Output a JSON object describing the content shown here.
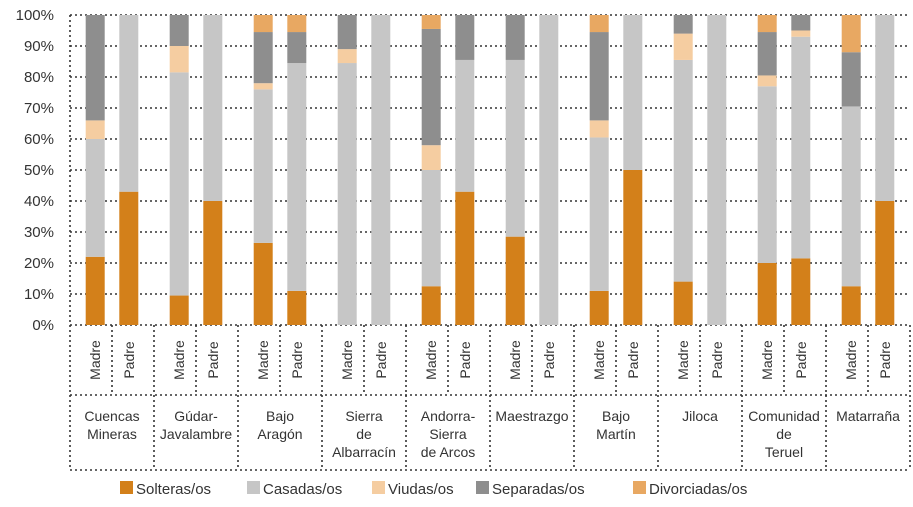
{
  "chart_data": {
    "type": "bar",
    "stacked": true,
    "y_axis": {
      "ticks": [
        "0%",
        "10%",
        "20%",
        "30%",
        "40%",
        "50%",
        "60%",
        "70%",
        "80%",
        "90%",
        "100%"
      ],
      "ylim": [
        0,
        100
      ],
      "unit": "%"
    },
    "grid": "dotted horizontal",
    "legend_placement": "bottom",
    "groups": [
      {
        "label": "Cuencas Mineras",
        "label_lines": [
          "Cuencas",
          "Mineras"
        ],
        "bars": [
          {
            "sub": "Madre",
            "values": [
              22,
              38,
              6,
              34,
              0
            ]
          },
          {
            "sub": "Padre",
            "values": [
              43,
              57,
              0,
              0,
              0
            ]
          }
        ]
      },
      {
        "label": "Gúdar-Javalambre",
        "label_lines": [
          "Gúdar-",
          "Javalambre"
        ],
        "bars": [
          {
            "sub": "Madre",
            "values": [
              9.5,
              72,
              8.5,
              10,
              0
            ]
          },
          {
            "sub": "Padre",
            "values": [
              40,
              60,
              0,
              0,
              0
            ]
          }
        ]
      },
      {
        "label": "Bajo Aragón",
        "label_lines": [
          "Bajo",
          "Aragón"
        ],
        "bars": [
          {
            "sub": "Madre",
            "values": [
              26.5,
              49.5,
              2,
              16.5,
              5.5
            ]
          },
          {
            "sub": "Padre",
            "values": [
              11,
              73.5,
              0,
              10,
              5.5
            ]
          }
        ]
      },
      {
        "label": "Sierra de Albarracín",
        "label_lines": [
          "Sierra",
          "de",
          "Albarracín"
        ],
        "bars": [
          {
            "sub": "Madre",
            "values": [
              0,
              84.5,
              4.5,
              11,
              0
            ]
          },
          {
            "sub": "Padre",
            "values": [
              0,
              100,
              0,
              0,
              0
            ]
          }
        ]
      },
      {
        "label": "Andorra-Sierra de Arcos",
        "label_lines": [
          "Andorra-",
          "Sierra",
          "de Arcos"
        ],
        "bars": [
          {
            "sub": "Madre",
            "values": [
              12.5,
              37.5,
              8,
              37.5,
              4.5
            ]
          },
          {
            "sub": "Padre",
            "values": [
              43,
              42.5,
              0,
              14.5,
              0
            ]
          }
        ]
      },
      {
        "label": "Maestrazgo",
        "label_lines": [
          "Maestrazgo"
        ],
        "bars": [
          {
            "sub": "Madre",
            "values": [
              28.5,
              57,
              0,
              14.5,
              0
            ]
          },
          {
            "sub": "Padre",
            "values": [
              0,
              100,
              0,
              0,
              0
            ]
          }
        ]
      },
      {
        "label": "Bajo Martín",
        "label_lines": [
          "Bajo",
          "Martín"
        ],
        "bars": [
          {
            "sub": "Madre",
            "values": [
              11,
              49.5,
              5.5,
              28.5,
              5.5
            ]
          },
          {
            "sub": "Padre",
            "values": [
              50,
              50,
              0,
              0,
              0
            ]
          }
        ]
      },
      {
        "label": "Jiloca",
        "label_lines": [
          "Jiloca"
        ],
        "bars": [
          {
            "sub": "Madre",
            "values": [
              14,
              71.5,
              8.5,
              6,
              0
            ]
          },
          {
            "sub": "Padre",
            "values": [
              0,
              100,
              0,
              0,
              0
            ]
          }
        ]
      },
      {
        "label": "Comunidad de Teruel",
        "label_lines": [
          "Comunidad",
          "de",
          "Teruel"
        ],
        "bars": [
          {
            "sub": "Madre",
            "values": [
              20,
              57,
              3.5,
              14,
              5.5
            ]
          },
          {
            "sub": "Padre",
            "values": [
              21.5,
              71.5,
              2,
              5,
              0
            ]
          }
        ]
      },
      {
        "label": "Matarraña",
        "label_lines": [
          "Matarraña"
        ],
        "bars": [
          {
            "sub": "Madre",
            "values": [
              12.5,
              58,
              0,
              17.5,
              12
            ]
          },
          {
            "sub": "Padre",
            "values": [
              40,
              60,
              0,
              0,
              0
            ]
          }
        ]
      }
    ],
    "series": [
      {
        "name": "Solteras/os",
        "color": "#D3801A"
      },
      {
        "name": "Casadas/os",
        "color": "#C6C6C6"
      },
      {
        "name": "Viudas/os",
        "color": "#F5CDA1"
      },
      {
        "name": "Separadas/os",
        "color": "#8E8E8E"
      },
      {
        "name": "Divorciadas/os",
        "color": "#E8A862"
      }
    ]
  }
}
